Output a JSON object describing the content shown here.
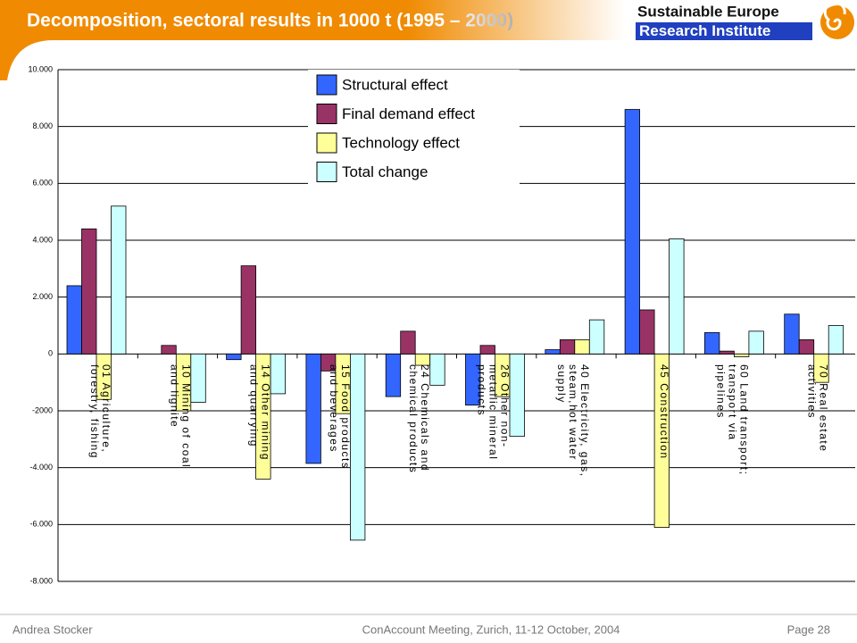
{
  "header": {
    "title": "Decomposition, sectoral results in 1000 t (1995 – 2000)",
    "logo_line1": "Sustainable Europe",
    "logo_line2": "Research Institute"
  },
  "footer": {
    "author": "Andrea Stocker",
    "event": "ConAccount Meeting, Zurich, 11-12 October, 2004",
    "page": "Page 28"
  },
  "chart_data": {
    "type": "bar",
    "categories": [
      "01 Agriculture, forestry, fishing",
      "10 Mining of coal and lignite",
      "14 Other mining and quarrying",
      "15 Food products and beverages",
      "24 Chemicals and chemical products",
      "26 Other non-metallic mineral products",
      "40 Electricity, gas, steam,hot water supply",
      "45 Construction",
      "60 Land transport; transport via pipelines",
      "70 Real estate activities"
    ],
    "series": [
      {
        "name": "Structural effect",
        "color": "#3366ff",
        "values": [
          2400,
          0,
          -200,
          -3850,
          -1500,
          -1800,
          150,
          8600,
          750,
          1400
        ]
      },
      {
        "name": "Final demand effect",
        "color": "#993366",
        "values": [
          4400,
          300,
          3100,
          -600,
          800,
          300,
          500,
          1550,
          100,
          500
        ]
      },
      {
        "name": "Technology effect",
        "color": "#ffff99",
        "values": [
          -1600,
          -2000,
          -4400,
          -2100,
          -400,
          -1500,
          500,
          -6100,
          -100,
          -1000
        ]
      },
      {
        "name": "Total change",
        "color": "#ccffff",
        "values": [
          5200,
          -1700,
          -1400,
          -6550,
          -1100,
          -2900,
          1200,
          4050,
          800,
          1000
        ]
      }
    ],
    "ylim": [
      -8000,
      10000
    ],
    "yticks": [
      {
        "value": -8000,
        "label": "-8.000"
      },
      {
        "value": -6000,
        "label": "-6.000"
      },
      {
        "value": -4000,
        "label": "-4.000"
      },
      {
        "value": -2000,
        "label": "-2000"
      },
      0,
      {
        "value": 2000,
        "label": "2.000"
      },
      {
        "value": 4000,
        "label": "4.000"
      },
      {
        "value": 6000,
        "label": "6.000"
      },
      {
        "value": 8000,
        "label": "8.000"
      },
      {
        "value": 10000,
        "label": "10.000"
      }
    ],
    "grid": true,
    "legend": "top-center"
  }
}
